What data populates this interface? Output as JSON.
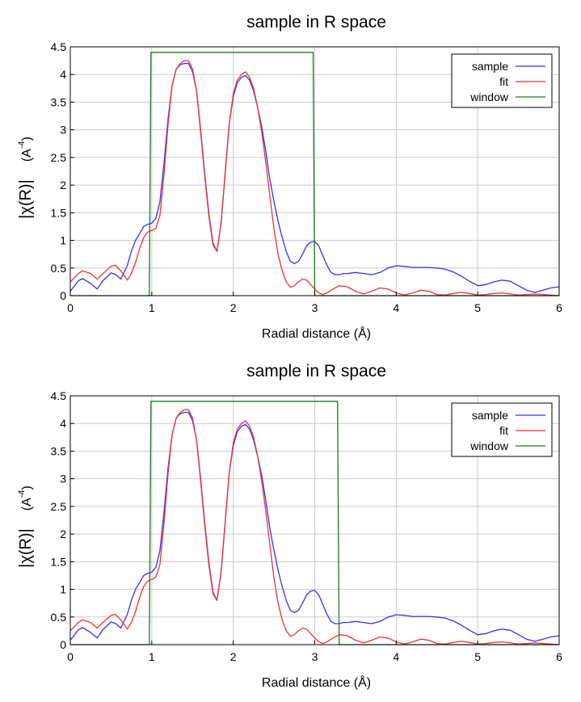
{
  "chart_data": [
    {
      "type": "line",
      "title": "sample in R space",
      "xlabel": "Radial distance    (Å)",
      "ylabel": "|χ(R)|",
      "ylabel_unit_base": "(A",
      "ylabel_unit_exp": "-4",
      "ylabel_unit_close": ")",
      "xlim": [
        0,
        6
      ],
      "ylim": [
        0,
        4.5
      ],
      "xticks": [
        "0",
        "1",
        "2",
        "3",
        "4",
        "5",
        "6"
      ],
      "yticks": [
        "0",
        "0.5",
        "1",
        "1.5",
        "2",
        "2.5",
        "3",
        "3.5",
        "4",
        "4.5"
      ],
      "grid": true,
      "legend_position": "top-right",
      "series": [
        {
          "name": "sample",
          "color": "#3333ee",
          "x": [
            0,
            0.1,
            0.15,
            0.25,
            0.33,
            0.4,
            0.5,
            0.56,
            0.62,
            0.7,
            0.75,
            0.8,
            0.85,
            0.9,
            0.95,
            1.0,
            1.05,
            1.1,
            1.15,
            1.2,
            1.25,
            1.3,
            1.35,
            1.4,
            1.45,
            1.5,
            1.55,
            1.6,
            1.65,
            1.7,
            1.75,
            1.8,
            1.85,
            1.9,
            1.95,
            2.0,
            2.05,
            2.1,
            2.15,
            2.2,
            2.25,
            2.3,
            2.35,
            2.4,
            2.45,
            2.5,
            2.55,
            2.6,
            2.65,
            2.7,
            2.75,
            2.8,
            2.85,
            2.9,
            2.95,
            3.0,
            3.05,
            3.1,
            3.15,
            3.2,
            3.25,
            3.3,
            3.35,
            3.4,
            3.5,
            3.6,
            3.7,
            3.8,
            3.9,
            4.0,
            4.1,
            4.2,
            4.3,
            4.4,
            4.5,
            4.6,
            4.7,
            4.8,
            4.9,
            5.0,
            5.1,
            5.2,
            5.3,
            5.4,
            5.5,
            5.6,
            5.7,
            5.8,
            5.9,
            6.0
          ],
          "y": [
            0.08,
            0.27,
            0.31,
            0.22,
            0.12,
            0.27,
            0.41,
            0.38,
            0.3,
            0.55,
            0.8,
            1.0,
            1.12,
            1.25,
            1.29,
            1.31,
            1.4,
            1.7,
            2.4,
            3.2,
            3.8,
            4.1,
            4.18,
            4.2,
            4.2,
            4.05,
            3.7,
            3.0,
            2.2,
            1.5,
            0.95,
            0.8,
            1.3,
            2.2,
            3.1,
            3.6,
            3.85,
            3.95,
            3.98,
            3.9,
            3.7,
            3.4,
            3.05,
            2.6,
            2.1,
            1.7,
            1.35,
            1.05,
            0.8,
            0.62,
            0.58,
            0.62,
            0.75,
            0.9,
            0.97,
            0.98,
            0.9,
            0.72,
            0.55,
            0.42,
            0.38,
            0.38,
            0.4,
            0.4,
            0.42,
            0.4,
            0.38,
            0.42,
            0.5,
            0.54,
            0.53,
            0.51,
            0.51,
            0.51,
            0.5,
            0.48,
            0.43,
            0.35,
            0.26,
            0.18,
            0.2,
            0.25,
            0.28,
            0.26,
            0.18,
            0.1,
            0.06,
            0.1,
            0.14,
            0.16
          ]
        },
        {
          "name": "fit",
          "color": "#ee3333",
          "x": [
            0,
            0.1,
            0.15,
            0.25,
            0.33,
            0.4,
            0.5,
            0.55,
            0.62,
            0.7,
            0.75,
            0.8,
            0.85,
            0.9,
            0.95,
            1.0,
            1.05,
            1.1,
            1.15,
            1.2,
            1.25,
            1.3,
            1.35,
            1.4,
            1.45,
            1.5,
            1.55,
            1.6,
            1.65,
            1.7,
            1.75,
            1.8,
            1.85,
            1.9,
            1.95,
            2.0,
            2.05,
            2.1,
            2.15,
            2.2,
            2.25,
            2.3,
            2.35,
            2.4,
            2.45,
            2.5,
            2.55,
            2.6,
            2.65,
            2.7,
            2.75,
            2.8,
            2.85,
            2.9,
            2.95,
            3.0,
            3.05,
            3.1,
            3.15,
            3.2,
            3.3,
            3.4,
            3.5,
            3.6,
            3.7,
            3.8,
            3.9,
            4.0,
            4.1,
            4.2,
            4.3,
            4.4,
            4.5,
            4.6,
            4.7,
            4.8,
            4.9,
            5.0,
            5.1,
            5.2,
            5.3,
            5.4,
            5.5,
            5.6,
            5.7,
            5.8,
            5.9,
            6.0
          ],
          "y": [
            0.25,
            0.4,
            0.45,
            0.4,
            0.3,
            0.4,
            0.53,
            0.55,
            0.45,
            0.28,
            0.4,
            0.6,
            0.85,
            1.05,
            1.15,
            1.18,
            1.22,
            1.45,
            2.2,
            3.1,
            3.8,
            4.1,
            4.2,
            4.25,
            4.25,
            4.1,
            3.7,
            2.95,
            2.15,
            1.45,
            0.92,
            0.8,
            1.3,
            2.2,
            3.1,
            3.65,
            3.9,
            4.0,
            4.05,
            3.95,
            3.75,
            3.4,
            2.95,
            2.4,
            1.8,
            1.2,
            0.75,
            0.45,
            0.25,
            0.15,
            0.18,
            0.25,
            0.3,
            0.28,
            0.2,
            0.12,
            0.05,
            0.02,
            0.05,
            0.1,
            0.18,
            0.16,
            0.08,
            0.03,
            0.08,
            0.14,
            0.12,
            0.05,
            0.01,
            0.05,
            0.1,
            0.08,
            0.02,
            0.01,
            0.04,
            0.06,
            0.04,
            0.01,
            0.02,
            0.04,
            0.05,
            0.03,
            0.01,
            0.02,
            0.03,
            0.02,
            0.01,
            0.0
          ]
        },
        {
          "name": "window",
          "color": "#227722",
          "x": [
            0,
            0.97,
            0.99,
            2.98,
            3.0,
            6.0
          ],
          "y": [
            0,
            0,
            4.4,
            4.4,
            0,
            0
          ]
        }
      ]
    },
    {
      "type": "line",
      "title": "sample in R space",
      "xlabel": "Radial distance    (Å)",
      "ylabel": "|χ(R)|",
      "ylabel_unit_base": "(A",
      "ylabel_unit_exp": "-4",
      "ylabel_unit_close": ")",
      "xlim": [
        0,
        6
      ],
      "ylim": [
        0,
        4.5
      ],
      "xticks": [
        "0",
        "1",
        "2",
        "3",
        "4",
        "5",
        "6"
      ],
      "yticks": [
        "0",
        "0.5",
        "1",
        "1.5",
        "2",
        "2.5",
        "3",
        "3.5",
        "4",
        "4.5"
      ],
      "grid": true,
      "legend_position": "top-right",
      "series": [
        {
          "name": "sample",
          "color": "#3333ee",
          "x": [
            0,
            0.1,
            0.15,
            0.25,
            0.33,
            0.4,
            0.5,
            0.56,
            0.62,
            0.7,
            0.75,
            0.8,
            0.85,
            0.9,
            0.95,
            1.0,
            1.05,
            1.1,
            1.15,
            1.2,
            1.25,
            1.3,
            1.35,
            1.4,
            1.45,
            1.5,
            1.55,
            1.6,
            1.65,
            1.7,
            1.75,
            1.8,
            1.85,
            1.9,
            1.95,
            2.0,
            2.05,
            2.1,
            2.15,
            2.2,
            2.25,
            2.3,
            2.35,
            2.4,
            2.45,
            2.5,
            2.55,
            2.6,
            2.65,
            2.7,
            2.75,
            2.8,
            2.85,
            2.9,
            2.95,
            3.0,
            3.05,
            3.1,
            3.15,
            3.2,
            3.25,
            3.3,
            3.35,
            3.4,
            3.5,
            3.6,
            3.7,
            3.8,
            3.9,
            4.0,
            4.1,
            4.2,
            4.3,
            4.4,
            4.5,
            4.6,
            4.7,
            4.8,
            4.9,
            5.0,
            5.1,
            5.2,
            5.3,
            5.4,
            5.5,
            5.6,
            5.7,
            5.8,
            5.9,
            6.0
          ],
          "y": [
            0.08,
            0.27,
            0.31,
            0.22,
            0.12,
            0.27,
            0.41,
            0.38,
            0.3,
            0.55,
            0.8,
            1.0,
            1.12,
            1.25,
            1.29,
            1.31,
            1.4,
            1.7,
            2.4,
            3.2,
            3.8,
            4.1,
            4.18,
            4.2,
            4.2,
            4.05,
            3.7,
            3.0,
            2.2,
            1.5,
            0.95,
            0.8,
            1.3,
            2.2,
            3.1,
            3.6,
            3.85,
            3.95,
            3.98,
            3.9,
            3.7,
            3.4,
            3.05,
            2.6,
            2.1,
            1.7,
            1.35,
            1.05,
            0.8,
            0.62,
            0.58,
            0.62,
            0.75,
            0.9,
            0.97,
            0.98,
            0.9,
            0.72,
            0.55,
            0.42,
            0.38,
            0.38,
            0.4,
            0.4,
            0.42,
            0.4,
            0.38,
            0.42,
            0.5,
            0.54,
            0.53,
            0.51,
            0.51,
            0.51,
            0.5,
            0.48,
            0.43,
            0.35,
            0.26,
            0.18,
            0.2,
            0.25,
            0.28,
            0.26,
            0.18,
            0.1,
            0.06,
            0.1,
            0.14,
            0.16
          ]
        },
        {
          "name": "fit",
          "color": "#ee3333",
          "x": [
            0,
            0.1,
            0.15,
            0.25,
            0.33,
            0.4,
            0.5,
            0.55,
            0.62,
            0.7,
            0.75,
            0.8,
            0.85,
            0.9,
            0.95,
            1.0,
            1.05,
            1.1,
            1.15,
            1.2,
            1.25,
            1.3,
            1.35,
            1.4,
            1.45,
            1.5,
            1.55,
            1.6,
            1.65,
            1.7,
            1.75,
            1.8,
            1.85,
            1.9,
            1.95,
            2.0,
            2.05,
            2.1,
            2.15,
            2.2,
            2.25,
            2.3,
            2.35,
            2.4,
            2.45,
            2.5,
            2.55,
            2.6,
            2.65,
            2.7,
            2.75,
            2.8,
            2.85,
            2.9,
            2.95,
            3.0,
            3.05,
            3.1,
            3.15,
            3.2,
            3.3,
            3.4,
            3.5,
            3.6,
            3.7,
            3.8,
            3.9,
            4.0,
            4.1,
            4.2,
            4.3,
            4.4,
            4.5,
            4.6,
            4.7,
            4.8,
            4.9,
            5.0,
            5.1,
            5.2,
            5.3,
            5.4,
            5.5,
            5.6,
            5.7,
            5.8,
            5.9,
            6.0
          ],
          "y": [
            0.25,
            0.4,
            0.45,
            0.4,
            0.3,
            0.4,
            0.53,
            0.55,
            0.45,
            0.28,
            0.4,
            0.6,
            0.85,
            1.05,
            1.15,
            1.18,
            1.22,
            1.45,
            2.2,
            3.1,
            3.8,
            4.1,
            4.2,
            4.25,
            4.25,
            4.1,
            3.7,
            2.95,
            2.15,
            1.45,
            0.92,
            0.8,
            1.3,
            2.2,
            3.1,
            3.65,
            3.9,
            4.0,
            4.05,
            3.95,
            3.75,
            3.4,
            2.95,
            2.4,
            1.8,
            1.2,
            0.75,
            0.45,
            0.25,
            0.15,
            0.18,
            0.25,
            0.3,
            0.28,
            0.2,
            0.12,
            0.05,
            0.02,
            0.05,
            0.1,
            0.18,
            0.16,
            0.08,
            0.03,
            0.08,
            0.14,
            0.12,
            0.05,
            0.01,
            0.05,
            0.1,
            0.08,
            0.02,
            0.01,
            0.04,
            0.06,
            0.04,
            0.01,
            0.02,
            0.04,
            0.05,
            0.03,
            0.01,
            0.02,
            0.03,
            0.02,
            0.01,
            0.0
          ]
        },
        {
          "name": "window",
          "color": "#227722",
          "x": [
            0,
            0.97,
            0.99,
            3.28,
            3.3,
            6.0
          ],
          "y": [
            0,
            0,
            4.4,
            4.4,
            0,
            0
          ]
        }
      ]
    }
  ]
}
